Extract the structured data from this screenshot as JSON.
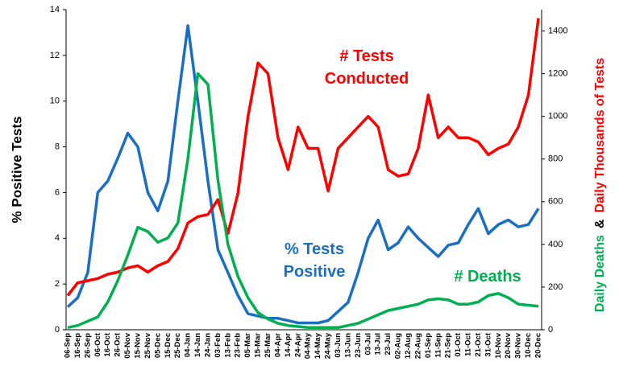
{
  "chart_data": {
    "type": "line",
    "ylabel": "% Positive Tests",
    "y2label": [
      "Daily Deaths",
      "&",
      "Daily Thousands of Tests"
    ],
    "categories": [
      "06-Sep",
      "16-Sep",
      "26-Sep",
      "06-Oct",
      "16-Oct",
      "26-Oct",
      "05-Nov",
      "15-Nov",
      "25-Nov",
      "05-Dec",
      "15-Dec",
      "25-Dec",
      "04-Jan",
      "14-Jan",
      "24-Jan",
      "03-Feb",
      "13-Feb",
      "23-Feb",
      "05-Mar",
      "15-Mar",
      "25-Mar",
      "04-Apr",
      "14-Apr",
      "24-Apr",
      "04-May",
      "14-May",
      "24-May",
      "03-Jun",
      "13-Jun",
      "23-Jun",
      "03-Jul",
      "13-Jul",
      "23-Jul",
      "02-Aug",
      "12-Aug",
      "22-Aug",
      "01-Sep",
      "11-Sep",
      "21-Sep",
      "01-Oct",
      "11-Oct",
      "21-Oct",
      "31-Oct",
      "10-Nov",
      "20-Nov",
      "30-Nov",
      "10-Dec",
      "20-Dec"
    ],
    "series": [
      {
        "name": "% Tests Positive",
        "color": "#1b6fc2",
        "axis": "y",
        "values": [
          1.0,
          1.4,
          2.5,
          6.0,
          6.5,
          7.5,
          8.6,
          8.0,
          6.0,
          5.2,
          6.5,
          10,
          13.3,
          10,
          6.5,
          3.5,
          2.5,
          1.5,
          0.7,
          0.6,
          0.5,
          0.5,
          0.4,
          0.3,
          0.3,
          0.3,
          0.4,
          0.8,
          1.2,
          2.5,
          4.0,
          4.8,
          3.5,
          3.8,
          4.5,
          4.0,
          3.6,
          3.2,
          3.7,
          3.8,
          4.6,
          5.3,
          4.2,
          4.6,
          4.8,
          4.5,
          4.6,
          5.3
        ]
      },
      {
        "name": "# Tests Conducted",
        "color": "#ff0000",
        "axis": "y2",
        "values": [
          160,
          220,
          230,
          240,
          260,
          270,
          290,
          300,
          270,
          300,
          320,
          380,
          500,
          530,
          540,
          610,
          450,
          640,
          1000,
          1250,
          1200,
          900,
          750,
          950,
          850,
          850,
          650,
          850,
          900,
          950,
          1000,
          950,
          750,
          720,
          730,
          850,
          1100,
          900,
          950,
          900,
          900,
          880,
          820,
          850,
          870,
          950,
          1100,
          1460
        ]
      },
      {
        "name": "# Deaths",
        "color": "#00b050",
        "axis": "y2",
        "values": [
          10,
          20,
          40,
          60,
          130,
          230,
          350,
          480,
          460,
          410,
          430,
          500,
          800,
          1200,
          1150,
          700,
          400,
          250,
          150,
          80,
          50,
          30,
          20,
          15,
          10,
          10,
          10,
          10,
          20,
          30,
          50,
          70,
          90,
          100,
          110,
          120,
          140,
          145,
          140,
          120,
          120,
          130,
          160,
          170,
          150,
          120,
          115,
          110
        ]
      }
    ],
    "ylim": [
      0,
      14
    ],
    "yticks": [
      0,
      2,
      4,
      6,
      8,
      10,
      12,
      14
    ],
    "y2lim": [
      0,
      1500
    ],
    "y2ticks": [
      0,
      200,
      400,
      600,
      800,
      1000,
      1200,
      1400
    ]
  }
}
